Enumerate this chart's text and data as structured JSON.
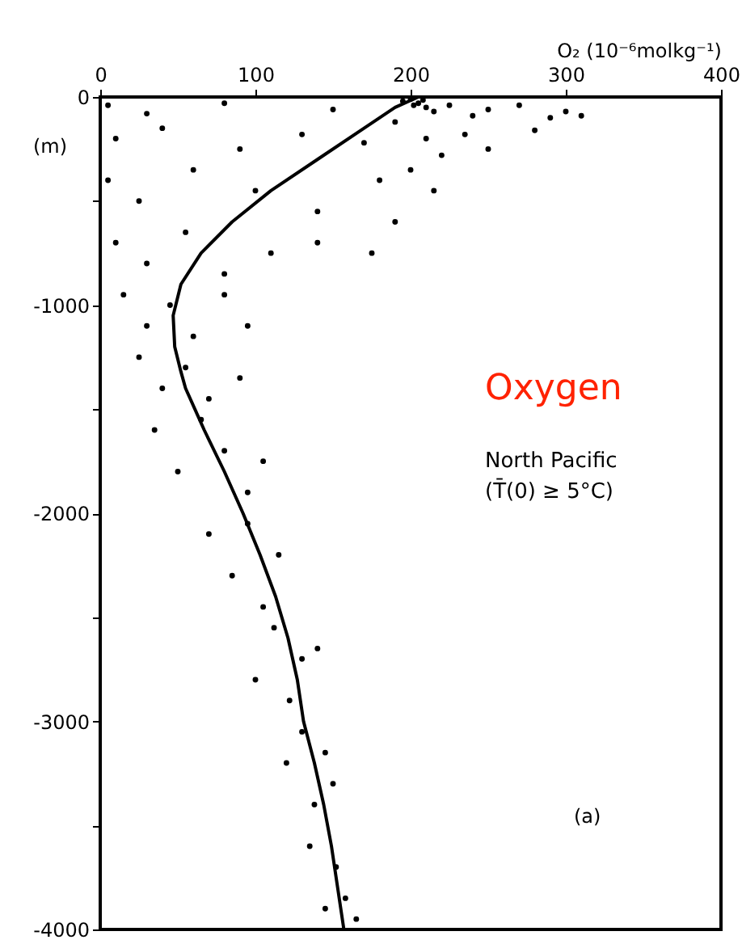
{
  "chart_data": {
    "type": "scatter",
    "xlabel": "O₂ (10⁻⁶molkg⁻¹)",
    "ylabel": "(m)",
    "xlim": [
      0,
      400
    ],
    "xticks": [
      0,
      100,
      200,
      300,
      400
    ],
    "ylim": [
      -4000,
      0
    ],
    "yticks": [
      0,
      {
        "value": -500,
        "label": null
      },
      -1000,
      {
        "value": -1500,
        "label": null
      },
      -2000,
      {
        "value": -2500,
        "label": null
      },
      -3000,
      {
        "value": -3500,
        "label": null
      },
      -4000
    ],
    "grid": false,
    "annotations": [
      "Oxygen",
      "North Pacific",
      "(T̄(0) ≥ 5°C)",
      "(a)"
    ],
    "series": [
      {
        "type": "scatter",
        "color": "#000000",
        "marker": "circle",
        "x": [
          5,
          30,
          80,
          150,
          195,
          200,
          202,
          205,
          208,
          210,
          215,
          225,
          240,
          250,
          270,
          290,
          300,
          310,
          10,
          40,
          90,
          130,
          170,
          190,
          210,
          220,
          235,
          250,
          280,
          5,
          25,
          60,
          100,
          140,
          180,
          200,
          215,
          190,
          10,
          30,
          55,
          80,
          110,
          140,
          175,
          15,
          30,
          45,
          60,
          80,
          95,
          25,
          40,
          55,
          70,
          90,
          35,
          50,
          65,
          80,
          95,
          105,
          70,
          85,
          95,
          105,
          115,
          100,
          112,
          122,
          130,
          140,
          120,
          130,
          138,
          145,
          150,
          135,
          145,
          152,
          158,
          165
        ],
        "values": [
          -40,
          -80,
          -30,
          -60,
          -20,
          -10,
          -40,
          -30,
          -15,
          -50,
          -70,
          -40,
          -90,
          -60,
          -40,
          -100,
          -70,
          -90,
          -200,
          -150,
          -250,
          -180,
          -220,
          -120,
          -200,
          -280,
          -180,
          -250,
          -160,
          -400,
          -500,
          -350,
          -450,
          -550,
          -400,
          -350,
          -450,
          -600,
          -700,
          -800,
          -650,
          -850,
          -750,
          -700,
          -750,
          -950,
          -1100,
          -1000,
          -1150,
          -950,
          -1100,
          -1250,
          -1400,
          -1300,
          -1450,
          -1350,
          -1600,
          -1800,
          -1550,
          -1700,
          -1900,
          -1750,
          -2100,
          -2300,
          -2050,
          -2450,
          -2200,
          -2800,
          -2550,
          -2900,
          -2700,
          -2650,
          -3200,
          -3050,
          -3400,
          -3150,
          -3300,
          -3600,
          -3900,
          -3700,
          -3850,
          -3950
        ]
      },
      {
        "type": "line",
        "color": "#000000",
        "marker": "none",
        "line_style": "solid",
        "x": [
          205,
          190,
          170,
          140,
          110,
          85,
          65,
          52,
          47,
          48,
          52,
          55,
          67,
          80,
          92,
          103,
          113,
          121,
          127,
          131,
          138,
          144,
          149,
          153,
          157
        ],
        "values": [
          0,
          -50,
          -150,
          -300,
          -450,
          -600,
          -750,
          -900,
          -1050,
          -1200,
          -1320,
          -1400,
          -1600,
          -1800,
          -2000,
          -2200,
          -2400,
          -2600,
          -2800,
          -3000,
          -3200,
          -3400,
          -3600,
          -3800,
          -4000
        ]
      }
    ]
  }
}
